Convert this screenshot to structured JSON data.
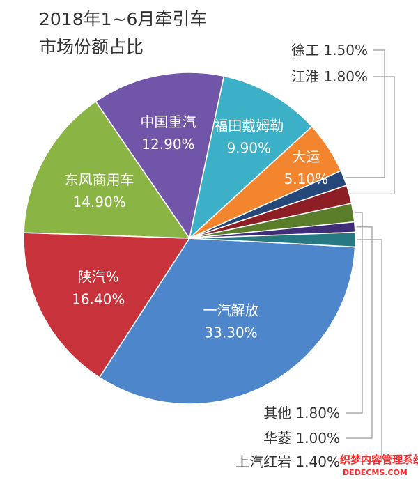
{
  "chart_data": {
    "type": "pie",
    "title": [
      "2018年1~6月牵引车",
      "市场份额占比"
    ],
    "slices": [
      {
        "name": "一汽解放",
        "value": 33.3,
        "label": "33.30%",
        "color": "#4e86cc"
      },
      {
        "name": "陕汽%",
        "value": 16.4,
        "label": "16.40%",
        "color": "#c8323a"
      },
      {
        "name": "东风商用车",
        "value": 14.9,
        "label": "14.90%",
        "color": "#8ab444"
      },
      {
        "name": "中国重汽",
        "value": 12.9,
        "label": "12.90%",
        "color": "#7155a8"
      },
      {
        "name": "福田戴姆勒",
        "value": 9.9,
        "label": "9.90%",
        "color": "#3cb0c6"
      },
      {
        "name": "大运",
        "value": 5.1,
        "label": "5.10%",
        "color": "#f2852d"
      },
      {
        "name": "徐工",
        "value": 1.5,
        "label": "1.50%",
        "color": "#25477a"
      },
      {
        "name": "江淮",
        "value": 1.8,
        "label": "1.80%",
        "color": "#8e1e25"
      },
      {
        "name": "其他",
        "value": 1.8,
        "label": "1.80%",
        "color": "#5a7d2a"
      },
      {
        "name": "华菱",
        "value": 1.0,
        "label": "1.00%",
        "color": "#3f2d78"
      },
      {
        "name": "上汽红岩",
        "value": 1.4,
        "label": "1.40%",
        "color": "#267882"
      }
    ],
    "legend": "callouts"
  },
  "watermark": {
    "line1": "织梦内容管理系统",
    "line2": "DEDECMS.COM"
  }
}
